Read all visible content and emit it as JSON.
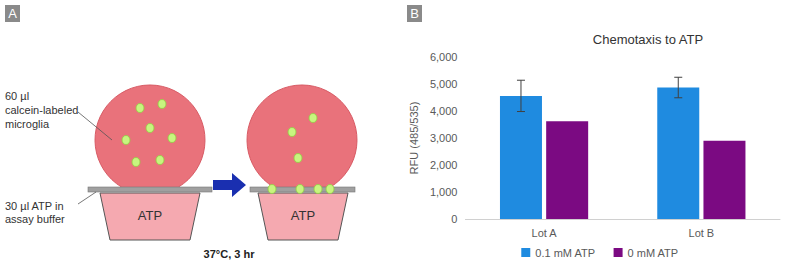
{
  "panels": [
    "A",
    "B"
  ],
  "diagram": {
    "droplet_label": [
      "60 µl",
      "calcein-labeled",
      "microglia"
    ],
    "well_label": [
      "30 µl ATP in",
      "assay buffer"
    ],
    "well_text": "ATP",
    "condition": "37°C, 3 hr"
  },
  "chart_data": {
    "type": "bar",
    "title": "Chemotaxis to ATP",
    "y_label": "RFU (485/535)",
    "categories": [
      "Lot A",
      "Lot B"
    ],
    "series": [
      {
        "name": "0.1 mM ATP",
        "color": "#1f8be0",
        "values": [
          4560,
          4870
        ],
        "errors": [
          580,
          380
        ]
      },
      {
        "name": "0 mM ATP",
        "color": "#7b0a82",
        "values": [
          3620,
          2900
        ]
      }
    ],
    "ylim": [
      0,
      6000
    ],
    "yticks": [
      0,
      {
        "value": 1000,
        "label": "1,000"
      },
      {
        "value": 2000,
        "label": "2,000"
      },
      {
        "value": 3000,
        "label": "3,000"
      },
      {
        "value": 4000,
        "label": "4,000"
      },
      {
        "value": 5000,
        "label": "5,000"
      },
      {
        "value": 6000,
        "label": "6,000"
      }
    ],
    "grid": false,
    "legend": "bottom"
  }
}
